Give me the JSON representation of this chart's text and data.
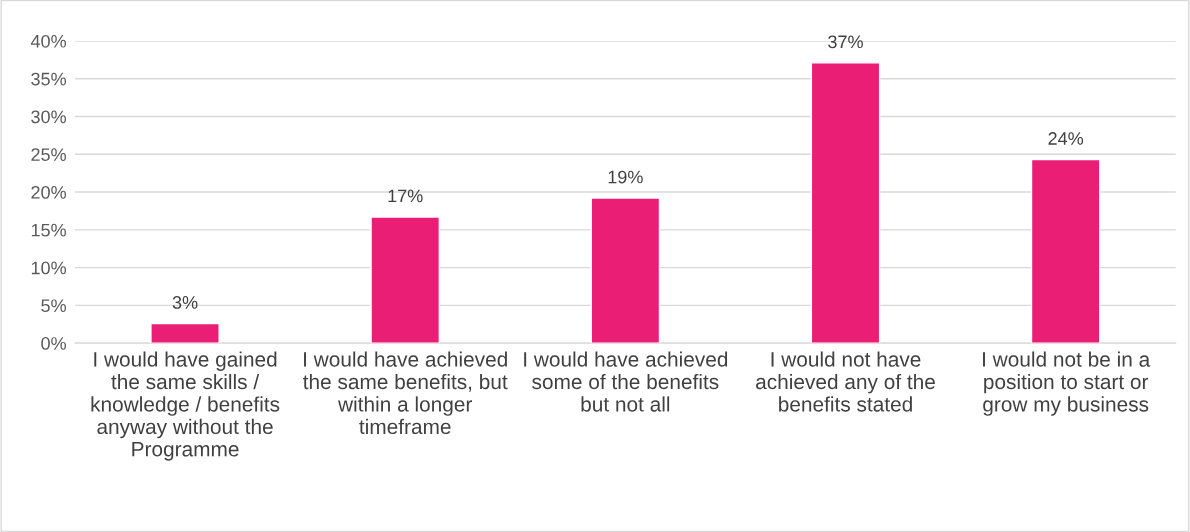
{
  "chart_data": {
    "type": "bar",
    "categories": [
      "I would have gained the same skills / knowledge / benefits anyway without the Programme",
      "I would have achieved the same benefits, but within a longer timeframe",
      "I would have achieved some of the benefits but not all",
      "I would not have achieved any of the benefits stated",
      "I would not be in a position to start or grow my business"
    ],
    "values": [
      2.6,
      16.7,
      19.2,
      37.1,
      24.3
    ],
    "value_labels": [
      "3%",
      "17%",
      "19%",
      "37%",
      "24%"
    ],
    "color": "#e91e74",
    "ylim": [
      0,
      40
    ],
    "yticks": [
      {
        "value": 0,
        "label": "0%"
      },
      {
        "value": 5,
        "label": "5%"
      },
      {
        "value": 10,
        "label": "10%"
      },
      {
        "value": 15,
        "label": "15%"
      },
      {
        "value": 20,
        "label": "20%"
      },
      {
        "value": 25,
        "label": "25%"
      },
      {
        "value": 30,
        "label": "30%"
      },
      {
        "value": 35,
        "label": "35%"
      },
      {
        "value": 40,
        "label": "40%"
      }
    ],
    "grid": "y",
    "legend": false
  }
}
